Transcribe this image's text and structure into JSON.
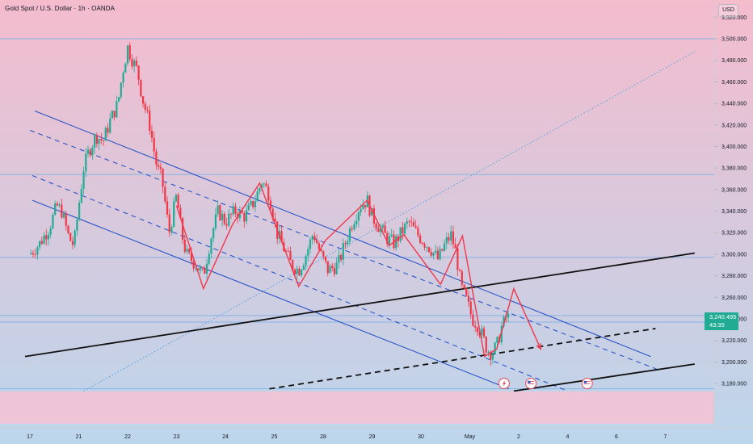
{
  "header": {
    "title": "Gold Spot / U.S. Dollar · 1h · OANDA",
    "currency": "USD"
  },
  "price_tag": {
    "price": "3,240.495",
    "countdown": "43:35"
  },
  "colors": {
    "bg_top": "#f4bccd",
    "bg_bottom": "#bcd6ec",
    "up": "#22ab94",
    "down": "#f23645",
    "channel": "#2a55c8",
    "trend": "#111111",
    "zigzag": "#f2364a",
    "hline": "#7fb1e6"
  },
  "chart_data": {
    "type": "candlestick",
    "symbol": "XAUUSD",
    "timeframe": "1h",
    "y_ticks": [
      "3,180.000",
      "3,200.000",
      "3,220.000",
      "3,240.000",
      "3,260.000",
      "3,280.000",
      "3,300.000",
      "3,320.000",
      "3,340.000",
      "3,360.000",
      "3,380.000",
      "3,400.000",
      "3,420.000",
      "3,440.000",
      "3,460.000",
      "3,480.000",
      "3,500.000",
      "3,520.000"
    ],
    "y_tick_values": [
      3180,
      3200,
      3220,
      3240,
      3260,
      3280,
      3300,
      3320,
      3340,
      3360,
      3380,
      3400,
      3420,
      3440,
      3460,
      3480,
      3500,
      3520
    ],
    "ylim": [
      3160,
      3530
    ],
    "x_labels": [
      {
        "t": 0,
        "label": "17"
      },
      {
        "t": 1,
        "label": "21"
      },
      {
        "t": 2,
        "label": "22"
      },
      {
        "t": 3,
        "label": "23"
      },
      {
        "t": 4,
        "label": "24"
      },
      {
        "t": 5,
        "label": "25"
      },
      {
        "t": 6,
        "label": "28"
      },
      {
        "t": 7,
        "label": "29"
      },
      {
        "t": 8,
        "label": "30"
      },
      {
        "t": 9,
        "label": "May"
      },
      {
        "t": 10,
        "label": "2"
      },
      {
        "t": 11,
        "label": "4"
      },
      {
        "t": 12,
        "label": "6"
      },
      {
        "t": 13,
        "label": "7"
      }
    ],
    "xlim": [
      -0.1,
      13.6
    ],
    "close_path": [
      [
        0.0,
        3300
      ],
      [
        0.2,
        3310
      ],
      [
        0.4,
        3325
      ],
      [
        0.55,
        3345
      ],
      [
        0.65,
        3340
      ],
      [
        0.8,
        3315
      ],
      [
        0.9,
        3308
      ],
      [
        1.0,
        3345
      ],
      [
        1.1,
        3380
      ],
      [
        1.2,
        3395
      ],
      [
        1.35,
        3410
      ],
      [
        1.5,
        3405
      ],
      [
        1.65,
        3425
      ],
      [
        1.8,
        3440
      ],
      [
        1.9,
        3470
      ],
      [
        2.0,
        3492
      ],
      [
        2.1,
        3480
      ],
      [
        2.2,
        3470
      ],
      [
        2.3,
        3445
      ],
      [
        2.45,
        3420
      ],
      [
        2.6,
        3380
      ],
      [
        2.7,
        3370
      ],
      [
        2.85,
        3320
      ],
      [
        3.0,
        3355
      ],
      [
        3.1,
        3320
      ],
      [
        3.2,
        3300
      ],
      [
        3.4,
        3290
      ],
      [
        3.55,
        3280
      ],
      [
        3.7,
        3315
      ],
      [
        3.85,
        3340
      ],
      [
        4.0,
        3330
      ],
      [
        4.2,
        3340
      ],
      [
        4.4,
        3335
      ],
      [
        4.6,
        3350
      ],
      [
        4.75,
        3368
      ],
      [
        4.9,
        3355
      ],
      [
        5.05,
        3320
      ],
      [
        5.2,
        3305
      ],
      [
        5.35,
        3290
      ],
      [
        5.5,
        3285
      ],
      [
        5.65,
        3300
      ],
      [
        5.8,
        3320
      ],
      [
        5.95,
        3300
      ],
      [
        6.1,
        3285
      ],
      [
        6.3,
        3290
      ],
      [
        6.45,
        3310
      ],
      [
        6.6,
        3330
      ],
      [
        6.75,
        3345
      ],
      [
        6.9,
        3350
      ],
      [
        7.0,
        3335
      ],
      [
        7.15,
        3325
      ],
      [
        7.3,
        3315
      ],
      [
        7.45,
        3310
      ],
      [
        7.6,
        3320
      ],
      [
        7.75,
        3330
      ],
      [
        7.9,
        3320
      ],
      [
        8.05,
        3312
      ],
      [
        8.2,
        3305
      ],
      [
        8.35,
        3295
      ],
      [
        8.5,
        3310
      ],
      [
        8.62,
        3318
      ],
      [
        8.72,
        3300
      ],
      [
        8.82,
        3270
      ],
      [
        8.95,
        3255
      ],
      [
        9.05,
        3240
      ],
      [
        9.15,
        3235
      ],
      [
        9.25,
        3225
      ],
      [
        9.35,
        3212
      ],
      [
        9.45,
        3208
      ],
      [
        9.55,
        3215
      ],
      [
        9.65,
        3232
      ],
      [
        9.75,
        3242
      ],
      [
        9.82,
        3240
      ]
    ],
    "price_levels": [
      3500,
      3374,
      3297,
      3243,
      3237,
      3175
    ],
    "channel_lines": [
      {
        "style": "solid",
        "from": [
          0.1,
          3433
        ],
        "to": [
          12.7,
          3205
        ]
      },
      {
        "style": "dashed",
        "from": [
          0.0,
          3415
        ],
        "to": [
          12.9,
          3192
        ]
      },
      {
        "style": "dashed",
        "from": [
          0.05,
          3373
        ],
        "to": [
          11.0,
          3173
        ]
      },
      {
        "style": "solid",
        "from": [
          0.05,
          3350
        ],
        "to": [
          9.8,
          3175
        ]
      }
    ],
    "trend_lines": [
      {
        "style": "solid",
        "from": [
          -0.1,
          3205
        ],
        "to": [
          13.6,
          3301
        ]
      },
      {
        "style": "dashed",
        "from": [
          4.9,
          3175
        ],
        "to": [
          12.8,
          3231
        ]
      },
      {
        "style": "solid",
        "from": [
          9.9,
          3173
        ],
        "to": [
          13.6,
          3198
        ]
      }
    ],
    "dotted_line": {
      "from": [
        1.1,
        3173
      ],
      "to": [
        13.6,
        3488
      ]
    },
    "zigzag": [
      [
        3.0,
        3345
      ],
      [
        3.55,
        3268
      ],
      [
        4.15,
        3328
      ],
      [
        4.7,
        3366
      ],
      [
        5.5,
        3270
      ],
      [
        6.05,
        3313
      ],
      [
        6.9,
        3350
      ],
      [
        7.35,
        3308
      ],
      [
        7.65,
        3318
      ],
      [
        8.4,
        3272
      ],
      [
        8.85,
        3317
      ],
      [
        9.3,
        3205
      ],
      [
        9.55,
        3212
      ],
      [
        9.9,
        3268
      ],
      [
        10.45,
        3212
      ]
    ],
    "event_markers": [
      {
        "t": 9.7,
        "y": 3180,
        "icon": "lightning-icon"
      },
      {
        "t": 10.25,
        "y": 3180,
        "icon": "flag-us-icon"
      },
      {
        "t": 11.4,
        "y": 3180,
        "icon": "flag-us-icon"
      }
    ]
  }
}
